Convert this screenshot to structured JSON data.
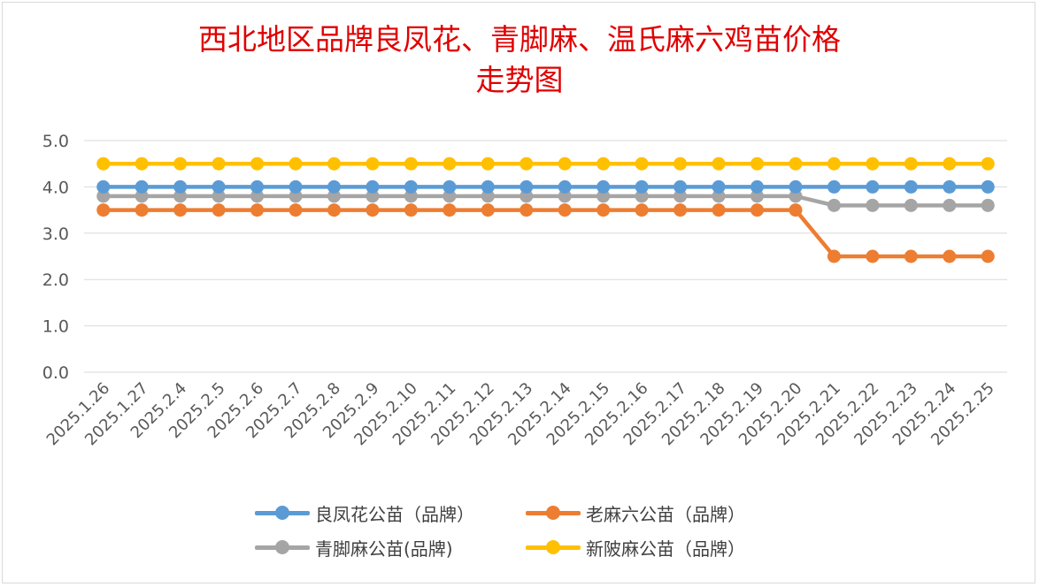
{
  "chart_data": {
    "type": "line",
    "title_line1": "西北地区品牌良凤花、青脚麻、温氏麻六鸡苗价格",
    "title_line2": "走势图",
    "categories": [
      "2025.1.26",
      "2025.1.27",
      "2025.2.4",
      "2025.2.5",
      "2025.2.6",
      "2025.2.7",
      "2025.2.8",
      "2025.2.9",
      "2025.2.10",
      "2025.2.11",
      "2025.2.12",
      "2025.2.13",
      "2025.2.14",
      "2025.2.15",
      "2025.2.16",
      "2025.2.17",
      "2025.2.18",
      "2025.2.19",
      "2025.2.20",
      "2025.2.21",
      "2025.2.22",
      "2025.2.23",
      "2025.2.24",
      "2025.2.25"
    ],
    "ylim": [
      0,
      5
    ],
    "yticks": [
      "0.0",
      "1.0",
      "2.0",
      "3.0",
      "4.0",
      "5.0"
    ],
    "grid": true,
    "legend_position": "bottom",
    "series": [
      {
        "name": "良凤花公苗（品牌）",
        "color": "#5b9bd5",
        "values": [
          4.0,
          4.0,
          4.0,
          4.0,
          4.0,
          4.0,
          4.0,
          4.0,
          4.0,
          4.0,
          4.0,
          4.0,
          4.0,
          4.0,
          4.0,
          4.0,
          4.0,
          4.0,
          4.0,
          4.0,
          4.0,
          4.0,
          4.0,
          4.0
        ]
      },
      {
        "name": "老麻六公苗（品牌）",
        "color": "#ed7d31",
        "values": [
          3.5,
          3.5,
          3.5,
          3.5,
          3.5,
          3.5,
          3.5,
          3.5,
          3.5,
          3.5,
          3.5,
          3.5,
          3.5,
          3.5,
          3.5,
          3.5,
          3.5,
          3.5,
          3.5,
          2.5,
          2.5,
          2.5,
          2.5,
          2.5
        ]
      },
      {
        "name": "青脚麻公苗(品牌)",
        "color": "#a5a5a5",
        "values": [
          3.8,
          3.8,
          3.8,
          3.8,
          3.8,
          3.8,
          3.8,
          3.8,
          3.8,
          3.8,
          3.8,
          3.8,
          3.8,
          3.8,
          3.8,
          3.8,
          3.8,
          3.8,
          3.8,
          3.6,
          3.6,
          3.6,
          3.6,
          3.6
        ]
      },
      {
        "name": "新陂麻公苗（品牌）",
        "color": "#ffc000",
        "values": [
          4.5,
          4.5,
          4.5,
          4.5,
          4.5,
          4.5,
          4.5,
          4.5,
          4.5,
          4.5,
          4.5,
          4.5,
          4.5,
          4.5,
          4.5,
          4.5,
          4.5,
          4.5,
          4.5,
          4.5,
          4.5,
          4.5,
          4.5,
          4.5
        ]
      }
    ],
    "draw_order": [
      2,
      0,
      3,
      1
    ]
  }
}
